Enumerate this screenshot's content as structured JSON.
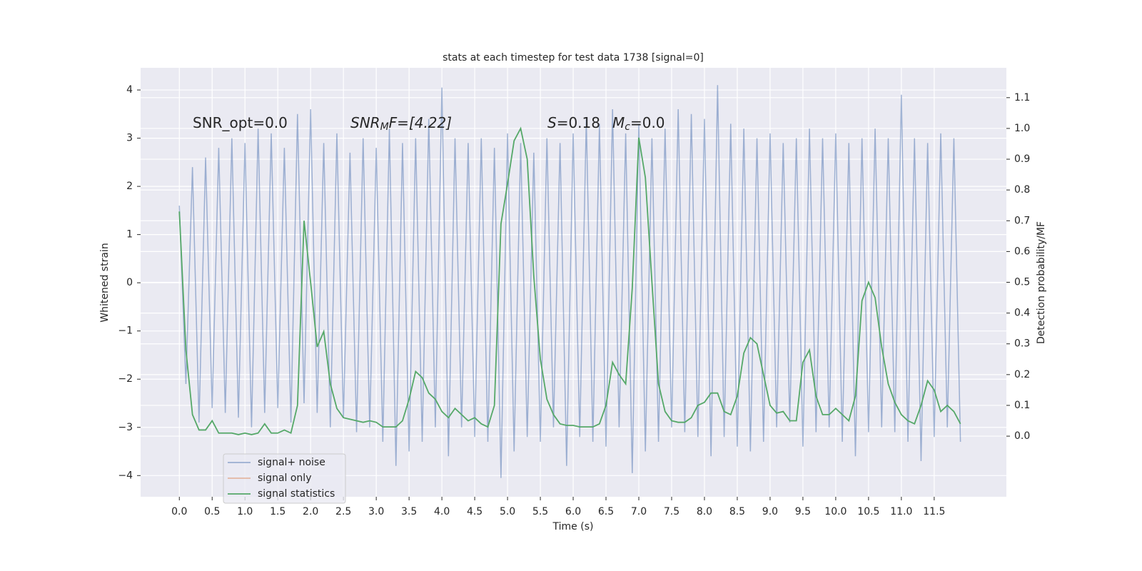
{
  "chart_data": {
    "type": "line",
    "title": "stats at each timestep for test data 1738 [signal=0]",
    "xlabel": "Time (s)",
    "ylabel": "Whitened strain",
    "y2label": "Detection probability/MF",
    "annotations": [
      {
        "base": "SNR_opt=0.0"
      },
      {
        "base": "SNR",
        "sub": "M",
        "tail": "F=[4.22]"
      },
      {
        "base": "S",
        "tail": "=0.18"
      },
      {
        "base": "M",
        "sub": "c",
        "tail": "=0.0"
      }
    ],
    "xlim": [
      -0.59,
      12.6
    ],
    "ylim": [
      -4.44,
      4.46
    ],
    "y2lim": [
      -0.197,
      1.197
    ],
    "xticks": [
      {
        "value": 0,
        "label": "0.0"
      },
      0.5,
      {
        "value": 1,
        "label": "1.0"
      },
      1.5,
      {
        "value": 2,
        "label": "2.0"
      },
      2.5,
      {
        "value": 3,
        "label": "3.0"
      },
      3.5,
      {
        "value": 4,
        "label": "4.0"
      },
      4.5,
      {
        "value": 5,
        "label": "5.0"
      },
      5.5,
      {
        "value": 6,
        "label": "6.0"
      },
      6.5,
      {
        "value": 7,
        "label": "7.0"
      },
      7.5,
      {
        "value": 8,
        "label": "8.0"
      },
      8.5,
      {
        "value": 9,
        "label": "9.0"
      },
      9.5,
      {
        "value": 10,
        "label": "10.0"
      },
      10.5,
      {
        "value": 11,
        "label": "11.0"
      },
      11.5
    ],
    "yticks": [
      {
        "value": -4,
        "label": "−4"
      },
      {
        "value": -3,
        "label": "−3"
      },
      {
        "value": -2,
        "label": "−2"
      },
      {
        "value": -1,
        "label": "−1"
      },
      0,
      1,
      2,
      3,
      4
    ],
    "y2ticks": [
      {
        "value": 0,
        "label": "0.0"
      },
      0.1,
      0.2,
      0.3,
      0.4,
      0.5,
      0.6,
      0.7,
      0.8,
      0.9,
      {
        "value": 1,
        "label": "1.0"
      },
      1.1
    ],
    "grid": true,
    "legend": "lower left",
    "series": [
      {
        "name": "signal+ noise",
        "color": "#4c72b0",
        "opacity": 0.5,
        "x": [
          0,
          0.1,
          0.2,
          0.3,
          0.4,
          0.5,
          0.6,
          0.7,
          0.8,
          0.9,
          1,
          1.1,
          1.2,
          1.3,
          1.4,
          1.5,
          1.6,
          1.7,
          1.8,
          1.9,
          2,
          2.1,
          2.2,
          2.3,
          2.4,
          2.5,
          2.6,
          2.7,
          2.8,
          2.9,
          3,
          3.1,
          3.2,
          3.3,
          3.4,
          3.5,
          3.6,
          3.7,
          3.8,
          3.9,
          4,
          4.1,
          4.2,
          4.3,
          4.4,
          4.5,
          4.6,
          4.7,
          4.8,
          4.9,
          5,
          5.1,
          5.2,
          5.3,
          5.4,
          5.5,
          5.6,
          5.7,
          5.8,
          5.9,
          6,
          6.1,
          6.2,
          6.3,
          6.4,
          6.5,
          6.6,
          6.7,
          6.8,
          6.9,
          7,
          7.1,
          7.2,
          7.3,
          7.4,
          7.5,
          7.6,
          7.7,
          7.8,
          7.9,
          8,
          8.1,
          8.2,
          8.3,
          8.4,
          8.5,
          8.6,
          8.7,
          8.8,
          8.9,
          9,
          9.1,
          9.2,
          9.3,
          9.4,
          9.5,
          9.6,
          9.7,
          9.8,
          9.9,
          10,
          10.1,
          10.2,
          10.3,
          10.4,
          10.5,
          10.6,
          10.7,
          10.8,
          10.9,
          11,
          11.1,
          11.2,
          11.3,
          11.4,
          11.5,
          11.6,
          11.7,
          11.8,
          11.9
        ],
        "values": [
          1.6,
          -2.1,
          2.4,
          -2.9,
          2.6,
          -2.6,
          2.8,
          -2.7,
          3.0,
          -2.8,
          2.9,
          -3.0,
          3.2,
          -2.7,
          3.1,
          -2.6,
          2.8,
          -2.9,
          3.5,
          -2.5,
          3.6,
          -2.7,
          2.9,
          -3.0,
          3.1,
          -2.8,
          2.7,
          -3.1,
          3.0,
          -3.0,
          2.8,
          -3.3,
          3.2,
          -3.8,
          2.9,
          -3.5,
          3.0,
          -3.3,
          3.4,
          -3.0,
          4.05,
          -3.6,
          3.0,
          -3.0,
          2.9,
          -3.2,
          3.0,
          -3.3,
          2.8,
          -4.05,
          3.1,
          -3.5,
          2.9,
          -3.2,
          2.7,
          -3.3,
          3.0,
          -3.0,
          2.9,
          -3.8,
          3.1,
          -3.2,
          3.4,
          -3.3,
          3.3,
          -3.4,
          3.6,
          -3.0,
          3.1,
          -3.95,
          3.3,
          -3.5,
          3.0,
          -3.3,
          3.2,
          -3.0,
          3.6,
          -3.1,
          3.5,
          -3.2,
          3.4,
          -3.6,
          4.1,
          -3.2,
          3.3,
          -3.4,
          3.2,
          -3.5,
          3.0,
          -3.3,
          3.1,
          -3.0,
          2.9,
          -2.9,
          3.0,
          -3.4,
          3.2,
          -3.1,
          3.0,
          -3.0,
          3.1,
          -3.3,
          2.9,
          -3.6,
          3.0,
          -3.1,
          3.2,
          -3.0,
          3.0,
          -3.1,
          3.9,
          -3.3,
          3.0,
          -3.7,
          2.9,
          -3.2,
          3.1,
          -3.0,
          3.0,
          -3.3
        ]
      },
      {
        "name": "signal only",
        "color": "#dd8452",
        "opacity": 0.5,
        "x": [],
        "values": []
      },
      {
        "name": "signal statistics",
        "color": "#55a868",
        "opacity": 1,
        "axis": "y2",
        "x": [
          0,
          0.1,
          0.2,
          0.3,
          0.4,
          0.5,
          0.6,
          0.7,
          0.8,
          0.9,
          1,
          1.1,
          1.2,
          1.3,
          1.4,
          1.5,
          1.6,
          1.7,
          1.8,
          1.9,
          2,
          2.1,
          2.2,
          2.3,
          2.4,
          2.5,
          2.6,
          2.7,
          2.8,
          2.9,
          3,
          3.1,
          3.2,
          3.3,
          3.4,
          3.5,
          3.6,
          3.7,
          3.8,
          3.9,
          4,
          4.1,
          4.2,
          4.3,
          4.4,
          4.5,
          4.6,
          4.7,
          4.8,
          4.9,
          5,
          5.1,
          5.2,
          5.3,
          5.4,
          5.5,
          5.6,
          5.7,
          5.8,
          5.9,
          6,
          6.1,
          6.2,
          6.3,
          6.4,
          6.5,
          6.6,
          6.7,
          6.8,
          6.9,
          7,
          7.1,
          7.2,
          7.3,
          7.4,
          7.5,
          7.6,
          7.7,
          7.8,
          7.9,
          8,
          8.1,
          8.2,
          8.3,
          8.4,
          8.5,
          8.6,
          8.7,
          8.8,
          8.9,
          9,
          9.1,
          9.2,
          9.3,
          9.4,
          9.5,
          9.6,
          9.7,
          9.8,
          9.9,
          10,
          10.1,
          10.2,
          10.3,
          10.4,
          10.5,
          10.6,
          10.7,
          10.8,
          10.9,
          11,
          11.1,
          11.2,
          11.3,
          11.4,
          11.5,
          11.6,
          11.7,
          11.8,
          11.9
        ],
        "values": [
          0.73,
          0.28,
          0.07,
          0.02,
          0.02,
          0.05,
          0.01,
          0.01,
          0.01,
          0.005,
          0.01,
          0.005,
          0.01,
          0.04,
          0.01,
          0.01,
          0.02,
          0.01,
          0.1,
          0.7,
          0.5,
          0.29,
          0.34,
          0.17,
          0.09,
          0.06,
          0.055,
          0.05,
          0.045,
          0.05,
          0.045,
          0.03,
          0.03,
          0.03,
          0.05,
          0.12,
          0.21,
          0.19,
          0.14,
          0.12,
          0.08,
          0.06,
          0.09,
          0.07,
          0.05,
          0.06,
          0.04,
          0.03,
          0.1,
          0.69,
          0.82,
          0.96,
          1.0,
          0.9,
          0.52,
          0.25,
          0.12,
          0.07,
          0.04,
          0.035,
          0.035,
          0.03,
          0.03,
          0.03,
          0.04,
          0.1,
          0.24,
          0.2,
          0.17,
          0.48,
          0.97,
          0.84,
          0.5,
          0.17,
          0.08,
          0.05,
          0.045,
          0.045,
          0.06,
          0.1,
          0.11,
          0.14,
          0.14,
          0.08,
          0.07,
          0.13,
          0.27,
          0.32,
          0.3,
          0.2,
          0.1,
          0.075,
          0.08,
          0.05,
          0.05,
          0.24,
          0.28,
          0.13,
          0.07,
          0.07,
          0.09,
          0.07,
          0.05,
          0.13,
          0.44,
          0.5,
          0.45,
          0.29,
          0.17,
          0.11,
          0.07,
          0.05,
          0.04,
          0.1,
          0.18,
          0.15,
          0.08,
          0.1,
          0.08,
          0.04
        ]
      }
    ]
  }
}
